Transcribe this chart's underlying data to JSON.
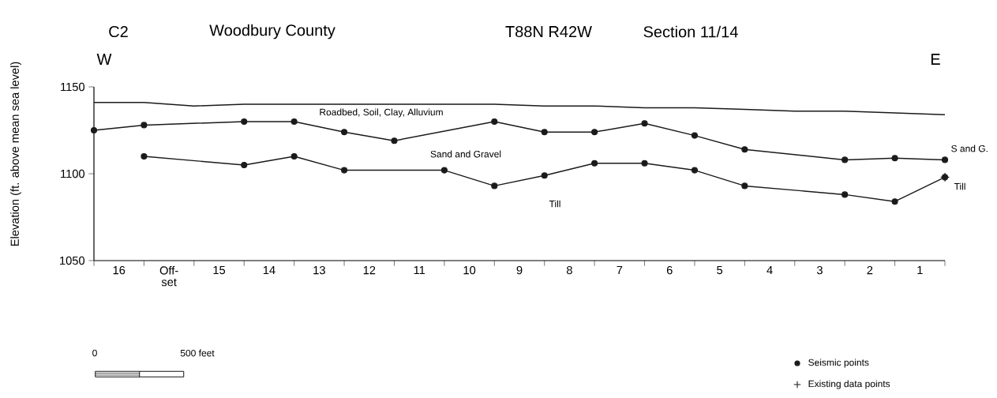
{
  "chart_data": {
    "type": "line",
    "title": "Woodbury County",
    "ylabel": "Elevation (ft. above mean sea level)",
    "categories": [
      null,
      null,
      null,
      null,
      null,
      null,
      null,
      null,
      null,
      null,
      null,
      null,
      null,
      null,
      null,
      null,
      null,
      null
    ],
    "ylim": [
      1050,
      1150
    ],
    "yticks": [
      1050,
      1100,
      1150
    ],
    "legend": "bottom right",
    "annotations": [
      "16",
      "Off-set",
      "15",
      "14",
      "13",
      "12",
      "11",
      "10",
      "9",
      "8",
      "7",
      "6",
      "5",
      "4",
      "3",
      "2",
      "1",
      "C2",
      "T88N  R42W",
      "Section 11/14",
      "W",
      "E",
      "Roadbed, Soil, Clay, Alluvium",
      "Sand and Gravel",
      "Till",
      "S and G.",
      "Till",
      "0",
      "500 feet"
    ],
    "series": [
      {
        "color": "#1a1a1a",
        "marker": "none",
        "values": [
          1141,
          1141,
          1139,
          1140,
          1140,
          1140,
          1140,
          1140,
          1140,
          1139,
          1139,
          1138,
          1138,
          1137,
          1136,
          1136,
          1135,
          1134
        ]
      },
      {
        "name": "Seismic points",
        "color": "#1a1a1a",
        "marker": "circle",
        "values": [
          1125,
          1128,
          null,
          1130,
          1130,
          1124,
          1119,
          null,
          1130,
          1124,
          1124,
          1129,
          1122,
          1114,
          null,
          1108,
          1109,
          1108
        ]
      },
      {
        "color": "#1a1a1a",
        "marker": "circle",
        "values": [
          null,
          1110,
          null,
          1105,
          1110,
          1102,
          null,
          1102,
          1093,
          1099,
          1106,
          1106,
          1102,
          1093,
          null,
          1088,
          1084,
          1098
        ]
      },
      {
        "name": "Existing data points",
        "type": "scatter",
        "color": "#1a1a1a",
        "marker": "cross",
        "values": [
          null,
          null,
          null,
          null,
          null,
          null,
          null,
          null,
          null,
          null,
          null,
          null,
          null,
          null,
          null,
          null,
          null,
          1098
        ]
      }
    ]
  }
}
